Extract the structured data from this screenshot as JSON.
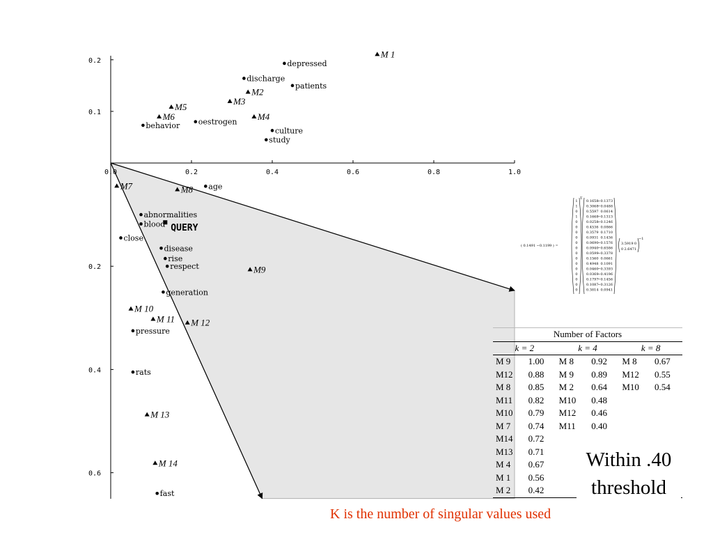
{
  "chart_data": {
    "type": "scatter",
    "xlim": [
      0,
      1.0
    ],
    "ylim": [
      -0.65,
      0.21
    ],
    "x_ticks": [
      {
        "v": 0,
        "label": "0.0"
      },
      {
        "v": 0.2,
        "label": "0.2"
      },
      {
        "v": 0.4,
        "label": "0.4"
      },
      {
        "v": 0.6,
        "label": "0.6"
      },
      {
        "v": 0.8,
        "label": "0.8"
      },
      {
        "v": 1.0,
        "label": "1.0"
      }
    ],
    "y_ticks": [
      {
        "v": 0.2,
        "label": "0.2"
      },
      {
        "v": 0.1,
        "label": "0.1"
      },
      {
        "v": -0.2,
        "label": "0.2"
      },
      {
        "v": -0.4,
        "label": "0.4"
      },
      {
        "v": -0.6,
        "label": "0.6"
      }
    ],
    "documents": [
      {
        "label": "M 1",
        "x": 0.66,
        "y": 0.21
      },
      {
        "label": "M2",
        "x": 0.34,
        "y": 0.137
      },
      {
        "label": "M3",
        "x": 0.295,
        "y": 0.119
      },
      {
        "label": "M4",
        "x": 0.355,
        "y": 0.089
      },
      {
        "label": "M5",
        "x": 0.15,
        "y": 0.108
      },
      {
        "label": "M6",
        "x": 0.12,
        "y": 0.089
      },
      {
        "label": "M7",
        "x": 0.015,
        "y": -0.045
      },
      {
        "label": "M8",
        "x": 0.165,
        "y": -0.052
      },
      {
        "label": "M9",
        "x": 0.345,
        "y": -0.207
      },
      {
        "label": "M 10",
        "x": 0.05,
        "y": -0.283
      },
      {
        "label": "M 11",
        "x": 0.105,
        "y": -0.303
      },
      {
        "label": "M 12",
        "x": 0.19,
        "y": -0.31
      },
      {
        "label": "M 13",
        "x": 0.09,
        "y": -0.488
      },
      {
        "label": "M 14",
        "x": 0.11,
        "y": -0.582
      }
    ],
    "terms": [
      {
        "label": "depressed",
        "x": 0.43,
        "y": 0.193
      },
      {
        "label": "discharge",
        "x": 0.33,
        "y": 0.164
      },
      {
        "label": "patients",
        "x": 0.45,
        "y": 0.15
      },
      {
        "label": "oestrogen",
        "x": 0.21,
        "y": 0.08
      },
      {
        "label": "behavior",
        "x": 0.08,
        "y": 0.073
      },
      {
        "label": "culture",
        "x": 0.4,
        "y": 0.063
      },
      {
        "label": "study",
        "x": 0.385,
        "y": 0.045
      },
      {
        "label": "age",
        "x": 0.235,
        "y": -0.045
      },
      {
        "label": "abnormalities",
        "x": 0.075,
        "y": -0.1
      },
      {
        "label": "blood",
        "x": 0.075,
        "y": -0.118
      },
      {
        "label": "close",
        "x": 0.025,
        "y": -0.145
      },
      {
        "label": "disease",
        "x": 0.125,
        "y": -0.165
      },
      {
        "label": "rise",
        "x": 0.135,
        "y": -0.185
      },
      {
        "label": "respect",
        "x": 0.14,
        "y": -0.2
      },
      {
        "label": "generation",
        "x": 0.13,
        "y": -0.25
      },
      {
        "label": "pressure",
        "x": 0.055,
        "y": -0.325
      },
      {
        "label": "rats",
        "x": 0.055,
        "y": -0.405
      },
      {
        "label": "fast",
        "x": 0.115,
        "y": -0.64
      }
    ],
    "query": {
      "label": "QUERY",
      "x": 0.135,
      "y": -0.115
    },
    "vectors": [
      {
        "x": 1.0,
        "y": -0.247
      },
      {
        "x": 0.375,
        "y": -0.65
      }
    ]
  },
  "equation": {
    "lhs": "( 0.1491   −0.1199 ) =",
    "rows": [
      [
        "1",
        "0.1658",
        "−0.1373"
      ],
      [
        "1",
        "0.3068",
        "−0.0488"
      ],
      [
        "0",
        "0.5597",
        "0.0614"
      ],
      [
        "1",
        "0.1668",
        "−0.1313"
      ],
      [
        "0",
        "0.0258",
        "−0.1246"
      ],
      [
        "0",
        "0.4536",
        "0.0866"
      ],
      [
        "0",
        "0.3579",
        "0.1710"
      ],
      [
        "0",
        "0.0931",
        "0.1436"
      ],
      [
        "0",
        "0.0690",
        "−0.1576"
      ],
      [
        "0",
        "0.0940",
        "−0.6586"
      ],
      [
        "0",
        "0.0599",
        "−0.3378"
      ],
      [
        "0",
        "0.1560",
        "0.0661"
      ],
      [
        "0",
        "0.4948",
        "0.1091"
      ],
      [
        "0",
        "0.0460",
        "−0.3393"
      ],
      [
        "0",
        "0.0369",
        "−0.4196"
      ],
      [
        "0",
        "0.1797",
        "−0.1456"
      ],
      [
        "0",
        "0.1087",
        "−0.3126"
      ],
      [
        "0",
        "0.3814",
        "0.0941"
      ]
    ],
    "sup_t": "T",
    "sigma": [
      [
        "3.5919",
        "0"
      ],
      [
        "0",
        "2.6471"
      ]
    ],
    "sup_inv": "−1"
  },
  "factor_table": {
    "title": "Number of Factors",
    "headers": [
      "k = 2",
      "k = 4",
      "k = 8"
    ],
    "rows": [
      [
        "M 9",
        "1.00",
        "M 8",
        "0.92",
        "M 8",
        "0.67"
      ],
      [
        "M12",
        "0.88",
        "M 9",
        "0.89",
        "M12",
        "0.55"
      ],
      [
        "M 8",
        "0.85",
        "M 2",
        "0.64",
        "M10",
        "0.54"
      ],
      [
        "M11",
        "0.82",
        "M10",
        "0.48",
        "",
        ""
      ],
      [
        "M10",
        "0.79",
        "M12",
        "0.46",
        "",
        ""
      ],
      [
        "M 7",
        "0.74",
        "M11",
        "0.40",
        "",
        ""
      ],
      [
        "M14",
        "0.72",
        "",
        "",
        "",
        ""
      ],
      [
        "M13",
        "0.71",
        "",
        "",
        "",
        ""
      ],
      [
        "M 4",
        "0.67",
        "",
        "",
        "",
        ""
      ],
      [
        "M 1",
        "0.56",
        "",
        "",
        "",
        ""
      ],
      [
        "M 2",
        "0.42",
        "",
        "",
        "",
        ""
      ]
    ]
  },
  "threshold_note": {
    "line1": "Within .40",
    "line2": "threshold"
  },
  "caption": "K is the number of singular values used"
}
